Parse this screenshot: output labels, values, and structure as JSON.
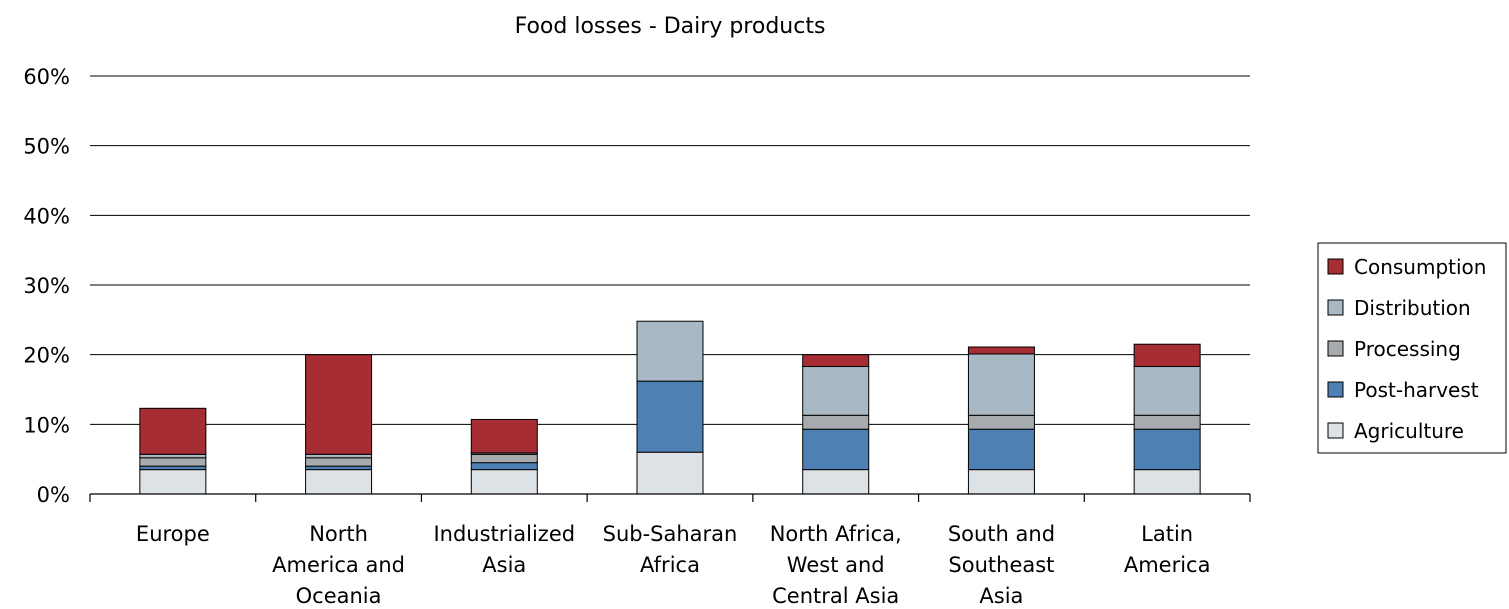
{
  "chart_data": {
    "type": "bar",
    "stacked": true,
    "title": "Food losses - Dairy products",
    "categories": [
      [
        "Europe"
      ],
      [
        "North",
        "America and",
        "Oceania"
      ],
      [
        "Industrialized",
        "Asia"
      ],
      [
        "Sub-Saharan",
        "Africa"
      ],
      [
        "North Africa,",
        "West and",
        "Central Asia"
      ],
      [
        "South and",
        "Southeast",
        "Asia"
      ],
      [
        "Latin",
        "America"
      ]
    ],
    "ylim": [
      0,
      60
    ],
    "yticks": [
      "0%",
      "10%",
      "20%",
      "30%",
      "40%",
      "50%",
      "60%"
    ],
    "grid": true,
    "legend_position": "right",
    "series": [
      {
        "name": "Agriculture",
        "color": "#dde2e6",
        "values": [
          3.5,
          3.5,
          3.5,
          6.0,
          3.5,
          3.5,
          3.5
        ]
      },
      {
        "name": "Post-harvest",
        "color": "#4f80b3",
        "values": [
          0.5,
          0.5,
          1.0,
          10.2,
          5.8,
          5.8,
          5.8
        ]
      },
      {
        "name": "Processing",
        "color": "#a8abae",
        "values": [
          1.2,
          1.2,
          1.2,
          0.0,
          2.0,
          2.0,
          2.0
        ]
      },
      {
        "name": "Distribution",
        "color": "#a8b8c5",
        "values": [
          0.5,
          0.5,
          0.2,
          8.6,
          7.0,
          8.8,
          7.0
        ]
      },
      {
        "name": "Consumption",
        "color": "#a62d33",
        "values": [
          6.6,
          14.3,
          4.8,
          0.0,
          1.7,
          1.0,
          3.2
        ]
      }
    ]
  }
}
